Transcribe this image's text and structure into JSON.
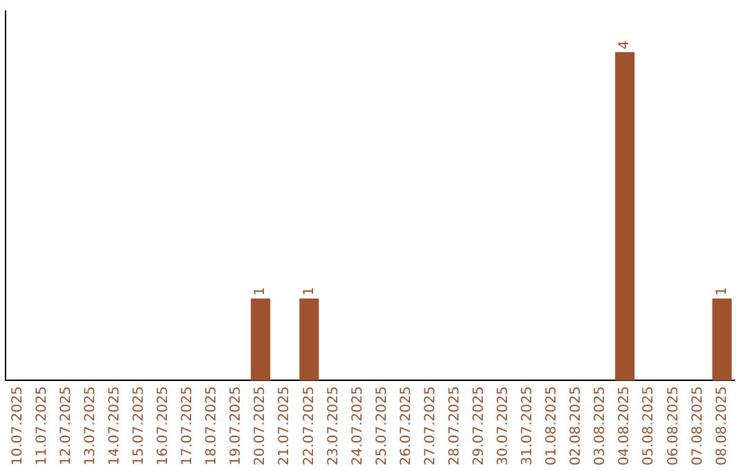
{
  "chart_data": {
    "type": "bar",
    "categories": [
      "10.07.2025",
      "11.07.2025",
      "12.07.2025",
      "13.07.2025",
      "14.07.2025",
      "15.07.2025",
      "16.07.2025",
      "17.07.2025",
      "18.07.2025",
      "19.07.2025",
      "20.07.2025",
      "21.07.2025",
      "22.07.2025",
      "23.07.2025",
      "24.07.2025",
      "25.07.2025",
      "26.07.2025",
      "27.07.2025",
      "28.07.2025",
      "29.07.2025",
      "30.07.2025",
      "31.07.2025",
      "01.08.2025",
      "02.08.2025",
      "03.08.2025",
      "04.08.2025",
      "05.08.2025",
      "06.08.2025",
      "07.08.2025",
      "08.08.2025"
    ],
    "values": [
      0,
      0,
      0,
      0,
      0,
      0,
      0,
      0,
      0,
      0,
      1,
      0,
      1,
      0,
      0,
      0,
      0,
      0,
      0,
      0,
      0,
      0,
      0,
      0,
      0,
      4,
      0,
      0,
      0,
      1
    ],
    "value_labels": [
      null,
      null,
      null,
      null,
      null,
      null,
      null,
      null,
      null,
      null,
      "1",
      null,
      "1",
      null,
      null,
      null,
      null,
      null,
      null,
      null,
      null,
      null,
      null,
      null,
      null,
      "4",
      null,
      null,
      null,
      "1"
    ],
    "color": "#a0522d",
    "grid": false,
    "legend": false,
    "tick_labels": "x"
  }
}
